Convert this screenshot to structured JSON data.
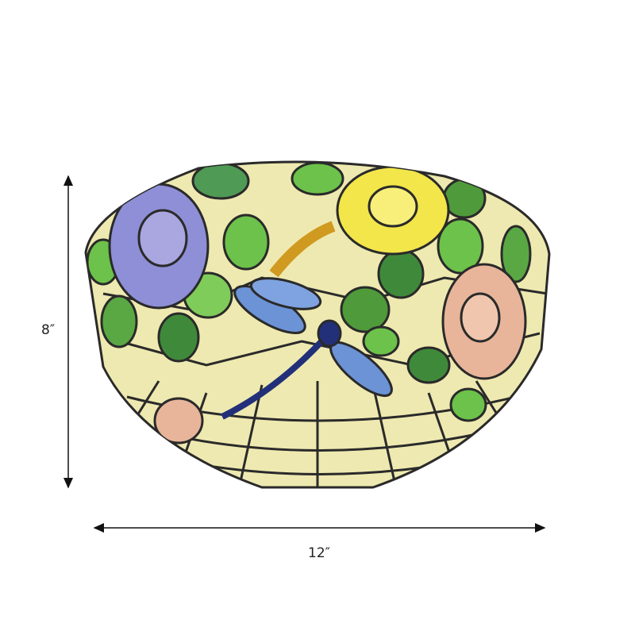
{
  "dimensions": {
    "height_label": "8″",
    "width_label": "12″"
  },
  "product": {
    "colors": {
      "glass_base": "#eee9b0",
      "lead_lines": "#2a2a2a",
      "blue_rose": "#8e8fd6",
      "yellow_rose": "#f2e64a",
      "pink_rose": "#e8b59a",
      "leaf": "#5aa843",
      "dragonfly": "#6b93d6"
    }
  }
}
